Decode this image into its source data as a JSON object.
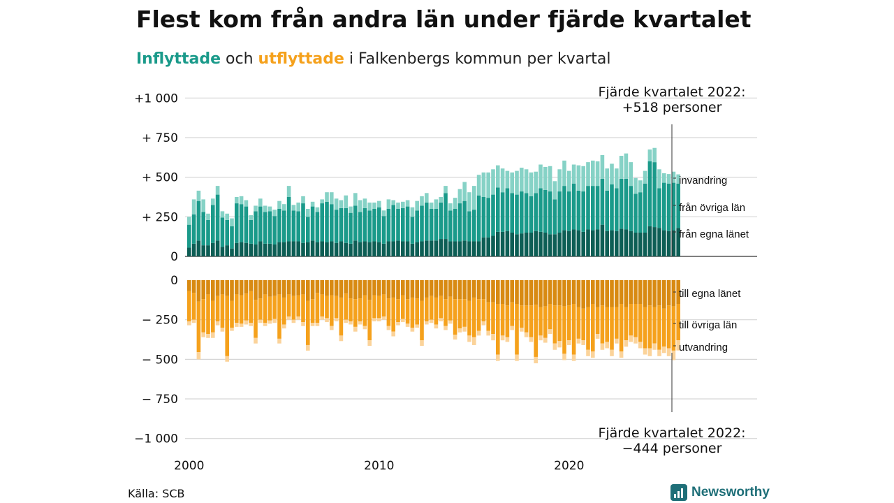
{
  "title": "Flest kom från andra län under fjärde kvartalet",
  "subtitle": {
    "in_word": "Inflyttade",
    "and_word": " och ",
    "out_word": "utflyttade",
    "rest": " i Falkenbergs kommun per kvartal"
  },
  "source": "Källa: SCB",
  "brand": "Newsworthy",
  "colors": {
    "in_own": "#0d5e55",
    "in_other": "#1a9a8a",
    "in_immig": "#86d2c6",
    "out_own": "#d88a12",
    "out_other": "#f5a11c",
    "out_emig": "#fbd39a",
    "brand": "#1f6f78"
  },
  "chart_data": [
    {
      "type": "bar",
      "stacked": true,
      "x_start": "2000 Q1",
      "x_ticks": [
        "2000",
        "2010",
        "2020"
      ],
      "ylim": [
        0,
        1000
      ],
      "y_ticks": [
        "+1 000",
        "+  750",
        "+  500",
        "+  250",
        "0"
      ],
      "y_tick_values": [
        1000,
        750,
        500,
        250,
        0
      ],
      "annotation_line1": "Fjärde kvartalet 2022:",
      "annotation_line2": "+518 personer",
      "series": [
        {
          "name": "från egna länet",
          "values": [
            55,
            80,
            100,
            70,
            70,
            85,
            100,
            60,
            70,
            50,
            85,
            90,
            85,
            80,
            75,
            95,
            80,
            80,
            75,
            90,
            90,
            95,
            95,
            95,
            85,
            90,
            100,
            90,
            95,
            90,
            95,
            85,
            95,
            85,
            80,
            100,
            90,
            95,
            90,
            95,
            90,
            80,
            95,
            95,
            100,
            95,
            95,
            80,
            90,
            95,
            100,
            100,
            100,
            110,
            110,
            95,
            95,
            95,
            100,
            95,
            95,
            95,
            120,
            120,
            130,
            155,
            155,
            160,
            150,
            140,
            145,
            150,
            150,
            160,
            155,
            150,
            140,
            140,
            150,
            165,
            160,
            170,
            165,
            155,
            170,
            165,
            170,
            200,
            160,
            165,
            160,
            175,
            170,
            160,
            150,
            150,
            150,
            190,
            185,
            180,
            165,
            160,
            165,
            180
          ]
        },
        {
          "name": "från övriga län",
          "values": [
            145,
            185,
            250,
            210,
            160,
            240,
            290,
            185,
            160,
            140,
            250,
            240,
            230,
            150,
            210,
            220,
            200,
            205,
            180,
            210,
            200,
            280,
            195,
            190,
            250,
            160,
            215,
            190,
            240,
            255,
            235,
            210,
            210,
            220,
            195,
            220,
            190,
            210,
            200,
            205,
            220,
            175,
            205,
            230,
            200,
            210,
            220,
            170,
            200,
            225,
            240,
            200,
            200,
            230,
            290,
            195,
            205,
            240,
            250,
            190,
            200,
            290,
            255,
            250,
            260,
            280,
            250,
            270,
            250,
            250,
            265,
            250,
            230,
            240,
            275,
            270,
            270,
            220,
            260,
            280,
            250,
            290,
            250,
            255,
            275,
            280,
            275,
            290,
            255,
            290,
            270,
            315,
            320,
            285,
            245,
            255,
            310,
            410,
            410,
            250,
            300,
            300,
            300,
            280
          ]
        },
        {
          "name": "invandring",
          "values": [
            50,
            95,
            65,
            80,
            40,
            40,
            55,
            40,
            40,
            50,
            40,
            50,
            40,
            30,
            35,
            50,
            40,
            30,
            40,
            50,
            40,
            70,
            35,
            55,
            45,
            50,
            30,
            30,
            25,
            60,
            75,
            70,
            50,
            80,
            40,
            80,
            75,
            60,
            50,
            40,
            40,
            35,
            60,
            30,
            40,
            40,
            40,
            60,
            60,
            60,
            60,
            40,
            60,
            35,
            45,
            45,
            70,
            90,
            120,
            120,
            150,
            130,
            155,
            160,
            160,
            140,
            150,
            110,
            130,
            150,
            150,
            150,
            150,
            135,
            150,
            145,
            160,
            115,
            140,
            160,
            130,
            120,
            160,
            160,
            150,
            160,
            155,
            150,
            140,
            130,
            125,
            145,
            160,
            150,
            100,
            75,
            80,
            75,
            90,
            120,
            60,
            60,
            70,
            58
          ]
        }
      ]
    },
    {
      "type": "bar",
      "stacked": true,
      "x_start": "2000 Q1",
      "x_ticks": [
        "2000",
        "2010",
        "2020"
      ],
      "ylim": [
        -1000,
        0
      ],
      "y_ticks": [
        "0",
        "−  250",
        "−  500",
        "−  750",
        "−1 000"
      ],
      "y_tick_values": [
        0,
        -250,
        -500,
        -750,
        -1000
      ],
      "annotation_line1": "Fjärde kvartalet 2022:",
      "annotation_line2": "−444 personer",
      "series": [
        {
          "name": "till egna länet",
          "values": [
            -70,
            -80,
            -135,
            -120,
            -90,
            -130,
            -100,
            -90,
            -100,
            -130,
            -90,
            -95,
            -85,
            -70,
            -125,
            -115,
            -90,
            -105,
            -100,
            -90,
            -110,
            -90,
            -100,
            -95,
            -90,
            -130,
            -120,
            -80,
            -90,
            -100,
            -95,
            -100,
            -110,
            -85,
            -115,
            -120,
            -115,
            -95,
            -125,
            -95,
            -100,
            -90,
            -115,
            -110,
            -120,
            -95,
            -120,
            -110,
            -115,
            -130,
            -110,
            -100,
            -110,
            -100,
            -120,
            -105,
            -120,
            -120,
            -120,
            -130,
            -110,
            -120,
            -120,
            -140,
            -140,
            -150,
            -150,
            -160,
            -140,
            -150,
            -160,
            -160,
            -160,
            -155,
            -170,
            -165,
            -150,
            -160,
            -160,
            -165,
            -160,
            -150,
            -170,
            -180,
            -170,
            -150,
            -170,
            -160,
            -170,
            -170,
            -170,
            -150,
            -170,
            -150,
            -150,
            -150,
            -170,
            -160,
            -170,
            -160,
            -180,
            -160,
            -165,
            -150
          ]
        },
        {
          "name": "till övriga län",
          "values": [
            -190,
            -170,
            -320,
            -210,
            -250,
            -200,
            -160,
            -210,
            -380,
            -170,
            -180,
            -180,
            -170,
            -200,
            -240,
            -135,
            -180,
            -150,
            -145,
            -280,
            -170,
            -140,
            -150,
            -135,
            -175,
            -280,
            -150,
            -190,
            -140,
            -140,
            -195,
            -140,
            -240,
            -165,
            -145,
            -175,
            -145,
            -195,
            -255,
            -145,
            -140,
            -140,
            -175,
            -215,
            -145,
            -150,
            -155,
            -190,
            -165,
            -250,
            -150,
            -150,
            -170,
            -140,
            -170,
            -150,
            -225,
            -185,
            -175,
            -220,
            -250,
            -200,
            -140,
            -180,
            -200,
            -320,
            -200,
            -200,
            -150,
            -320,
            -140,
            -170,
            -200,
            -330,
            -180,
            -200,
            -160,
            -240,
            -225,
            -300,
            -220,
            -320,
            -200,
            -200,
            -270,
            -300,
            -170,
            -240,
            -220,
            -270,
            -200,
            -300,
            -210,
            -200,
            -210,
            -240,
            -260,
            -270,
            -230,
            -280,
            -240,
            -270,
            -280,
            -230
          ]
        },
        {
          "name": "utvandring",
          "values": [
            -25,
            -20,
            -45,
            -30,
            -25,
            -35,
            -25,
            -25,
            -35,
            -20,
            -25,
            -20,
            -25,
            -20,
            -35,
            -20,
            -20,
            -20,
            -25,
            -30,
            -25,
            -20,
            -20,
            -20,
            -25,
            -35,
            -20,
            -20,
            -20,
            -25,
            -25,
            -20,
            -35,
            -20,
            -20,
            -30,
            -20,
            -20,
            -35,
            -20,
            -20,
            -20,
            -25,
            -30,
            -20,
            -20,
            -20,
            -25,
            -20,
            -35,
            -20,
            -20,
            -25,
            -20,
            -25,
            -20,
            -30,
            -25,
            -30,
            -40,
            -50,
            -30,
            -25,
            -30,
            -40,
            -40,
            -30,
            -30,
            -25,
            -40,
            -25,
            -30,
            -30,
            -40,
            -30,
            -30,
            -30,
            -40,
            -40,
            -40,
            -30,
            -40,
            -30,
            -30,
            -40,
            -40,
            -30,
            -40,
            -40,
            -40,
            -30,
            -40,
            -40,
            -40,
            -40,
            -40,
            -40,
            -50,
            -40,
            -40,
            -40,
            -50,
            -60,
            -64
          ]
        }
      ]
    }
  ]
}
